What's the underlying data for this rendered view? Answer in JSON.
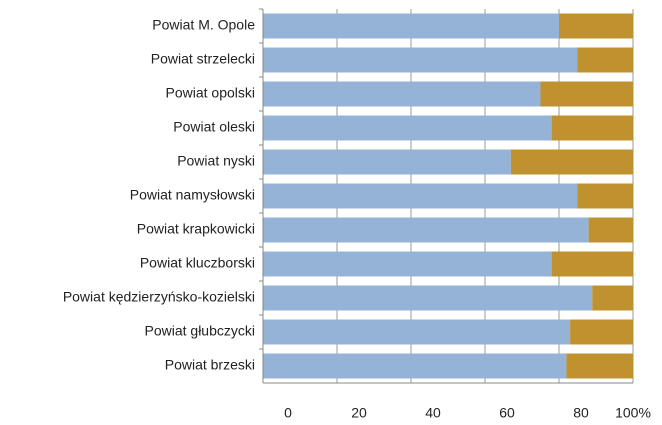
{
  "chart_data": {
    "type": "stacked-bar-horizontal",
    "categories": [
      "Powiat M. Opole",
      "Powiat strzelecki",
      "Powiat opolski",
      "Powiat oleski",
      "Powiat nyski",
      "Powiat namysłowski",
      "Powiat krapkowicki",
      "Powiat kluczborski",
      "Powiat kędzierzyńsko-kozielski",
      "Powiat głubczycki",
      "Powiat brzeski"
    ],
    "series": [
      {
        "color": "#95b3d7",
        "values": [
          80,
          85,
          75,
          78,
          67,
          85,
          88,
          78,
          89,
          83,
          82
        ]
      },
      {
        "color": "#c0922f",
        "values": [
          20,
          15,
          25,
          22,
          33,
          15,
          12,
          22,
          11,
          17,
          18
        ]
      }
    ],
    "xlim": [
      0,
      100
    ],
    "xticks": [
      0,
      20,
      40,
      60,
      80,
      {
        "value": 100,
        "label": "100%"
      }
    ],
    "grid": true
  }
}
